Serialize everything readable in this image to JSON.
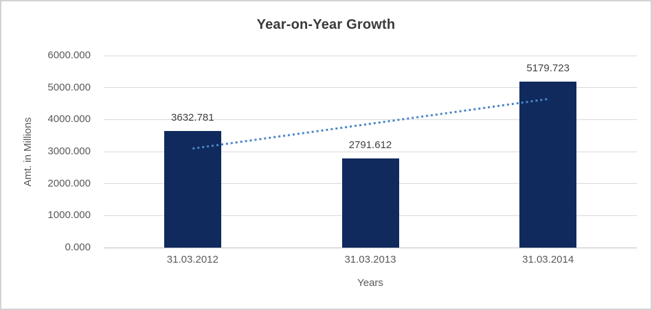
{
  "chart_data": {
    "type": "bar",
    "title": "Year-on-Year Growth",
    "xlabel": "Years",
    "ylabel": "Amt. in Millions",
    "categories": [
      "31.03.2012",
      "31.03.2013",
      "31.03.2014"
    ],
    "values": [
      3632.781,
      2791.612,
      5179.723
    ],
    "data_labels": [
      "3632.781",
      "2791.612",
      "5179.723"
    ],
    "ylim": [
      0,
      6000
    ],
    "ytick_step": 1000,
    "ytick_labels": [
      "0.000",
      "1000.000",
      "2000.000",
      "3000.000",
      "4000.000",
      "5000.000",
      "6000.000"
    ],
    "grid": true,
    "legend": "none",
    "trendline": {
      "type": "linear",
      "style": "dotted"
    },
    "colors": {
      "bar": "#102a5e",
      "trendline": "#4a86c8",
      "gridline": "#d9d9d9",
      "axis_line": "#bfbfbf",
      "title_text": "#3a3a3a",
      "tick_text": "#595959",
      "data_label_text": "#404040",
      "chart_border": "#d2d2d2",
      "background": "#ffffff"
    }
  }
}
